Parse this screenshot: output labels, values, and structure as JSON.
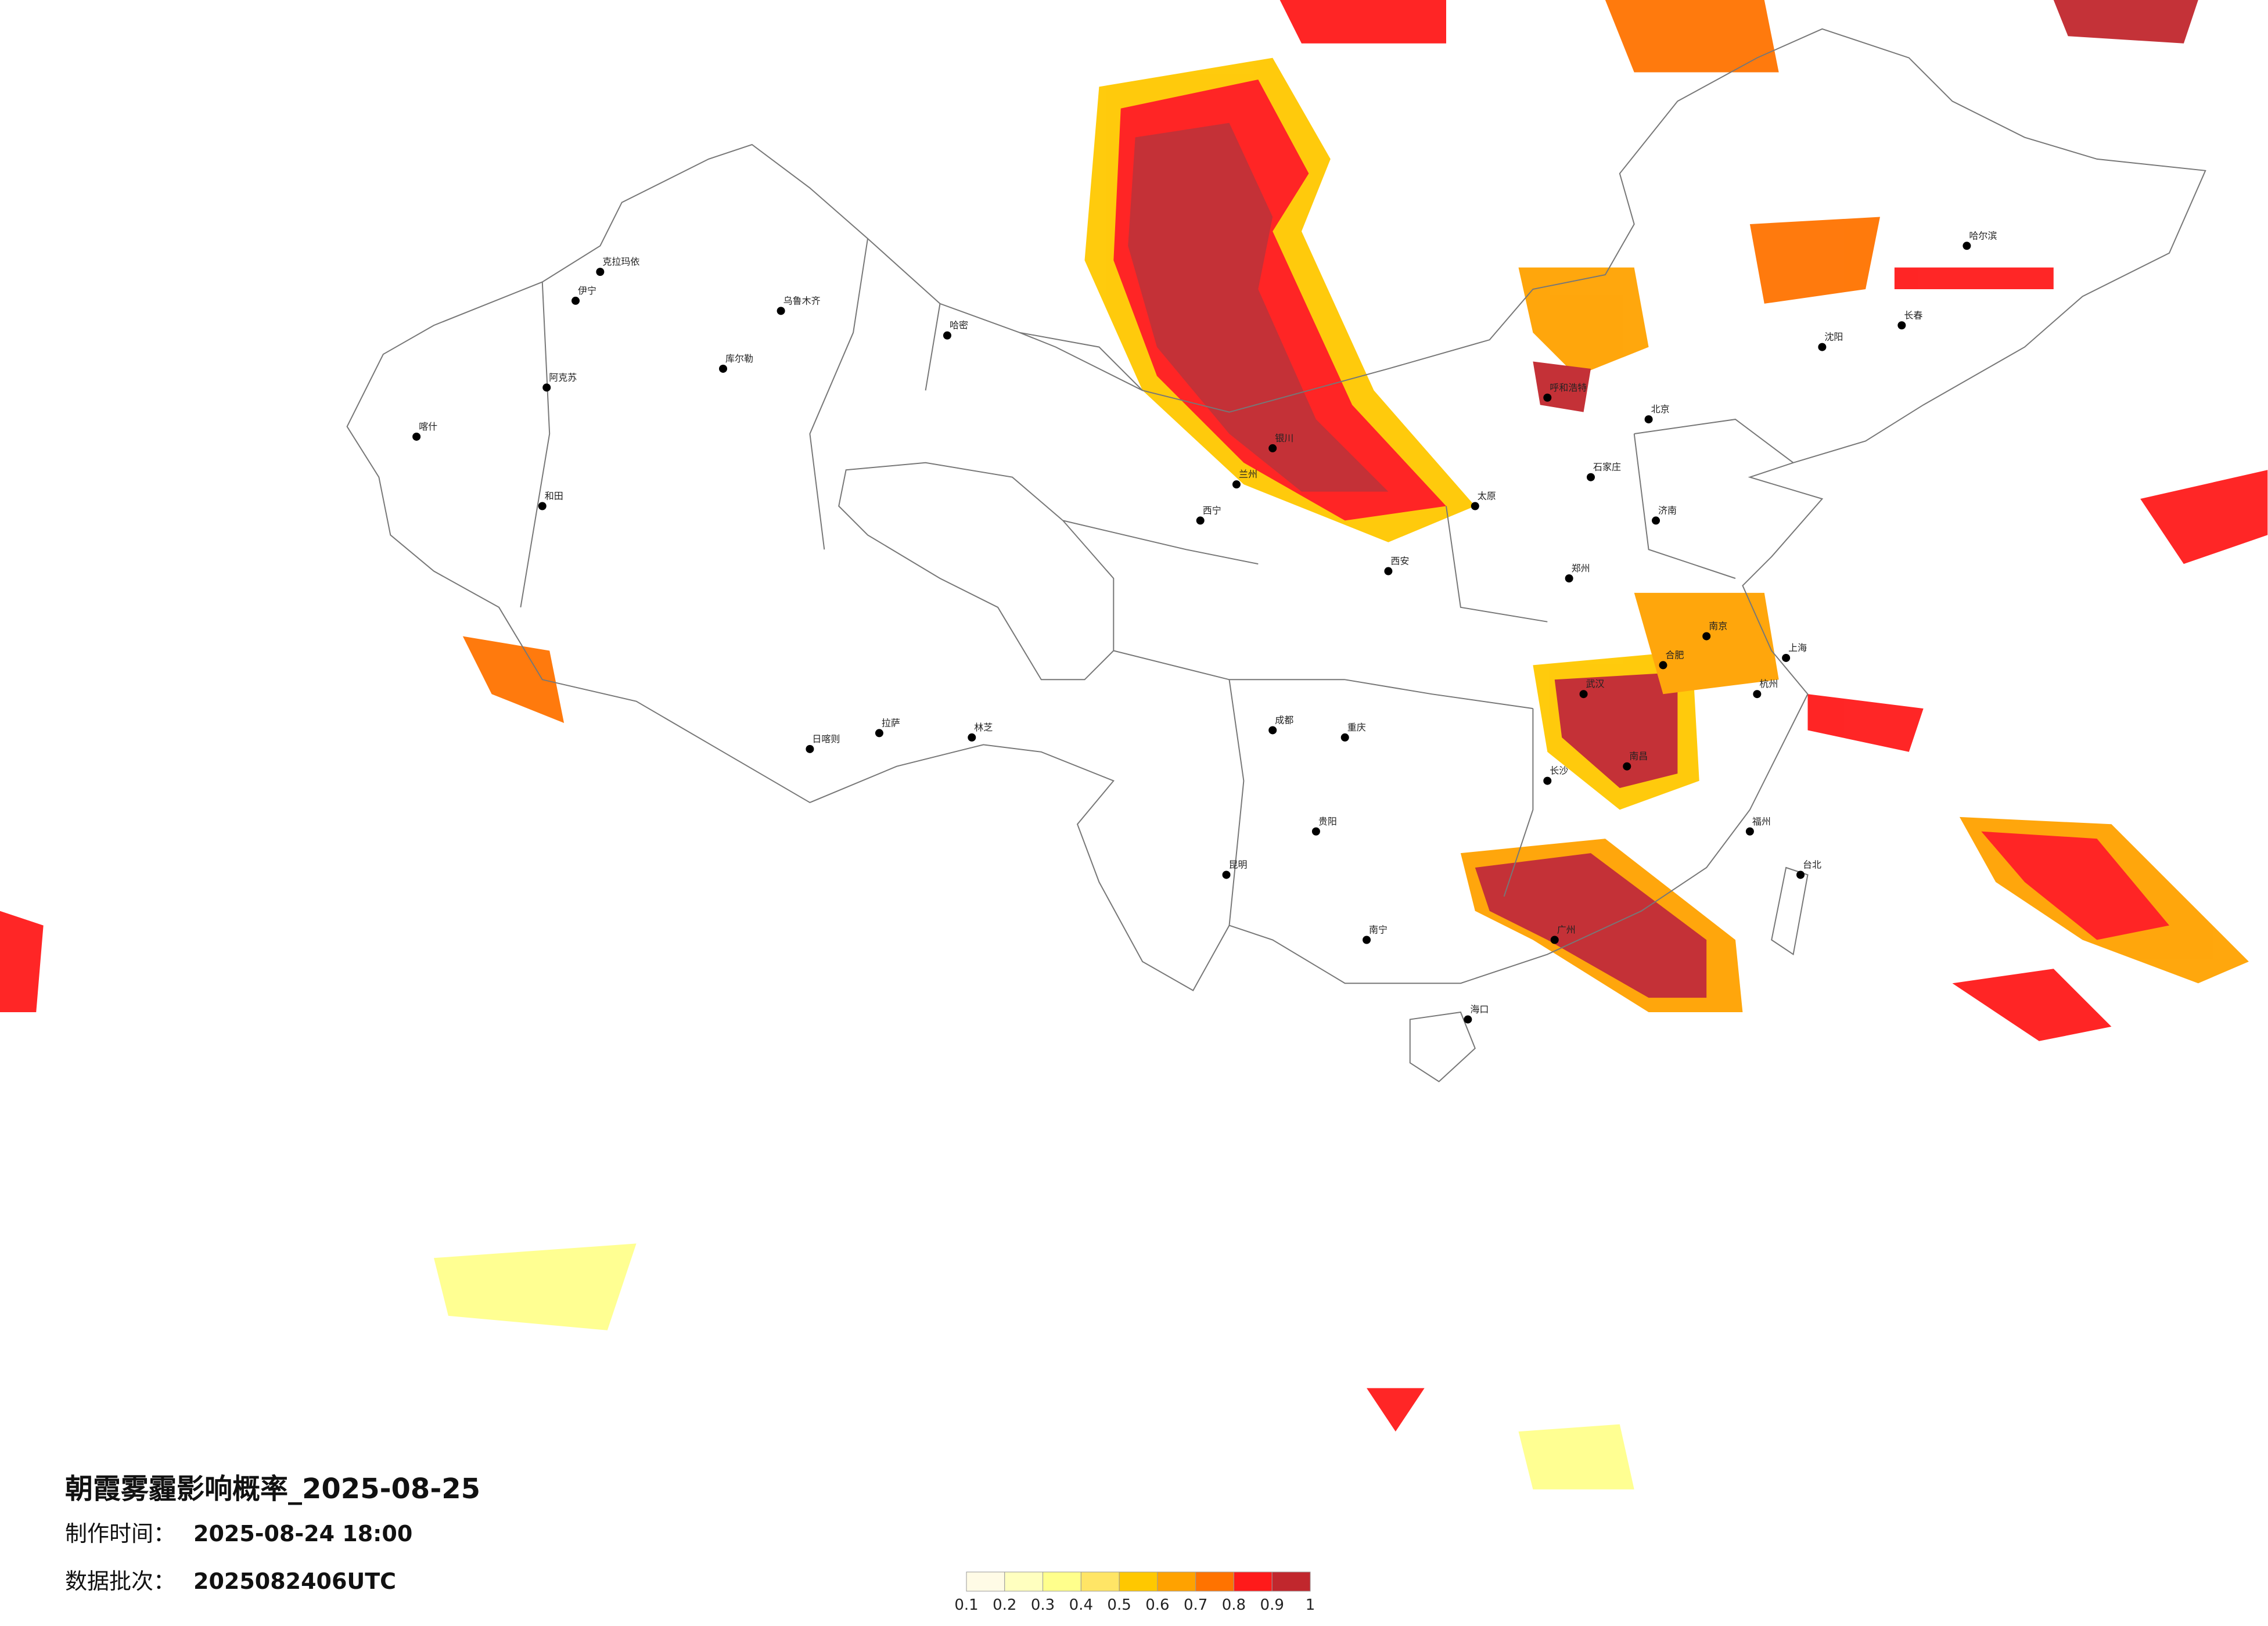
{
  "header": {
    "title": "朝霞雾霾影响概率_2025-08-25",
    "made_label": "制作时间：",
    "made_value": "2025-08-24 18:00",
    "batch_label": "数据批次：",
    "batch_value": "2025082406UTC"
  },
  "legend": {
    "colors": [
      "#fffbe6",
      "#ffffbf",
      "#ffff8c",
      "#ffe566",
      "#ffc800",
      "#ffa200",
      "#ff7300",
      "#ff1a1a",
      "#c1272d"
    ],
    "ticks": [
      0.1,
      0.2,
      0.3,
      0.4,
      0.5,
      0.6,
      0.7,
      0.8,
      0.9,
      1
    ]
  },
  "cities": [
    "北京",
    "上海",
    "广州",
    "成都",
    "武汉",
    "西安",
    "乌鲁木齐",
    "拉萨",
    "哈尔滨",
    "昆明",
    "重庆",
    "呼和浩特",
    "海口",
    "台北",
    "南宁",
    "长沙",
    "济南",
    "沈阳",
    "西宁",
    "喀什",
    "和田",
    "日喀则",
    "林芝",
    "克拉玛依",
    "伊宁",
    "哈密",
    "库尔勒",
    "阿克苏",
    "长春",
    "郑州",
    "南京",
    "杭州",
    "福州",
    "贵阳",
    "南昌",
    "合肥",
    "太原",
    "石家庄",
    "银川",
    "兰州"
  ]
}
